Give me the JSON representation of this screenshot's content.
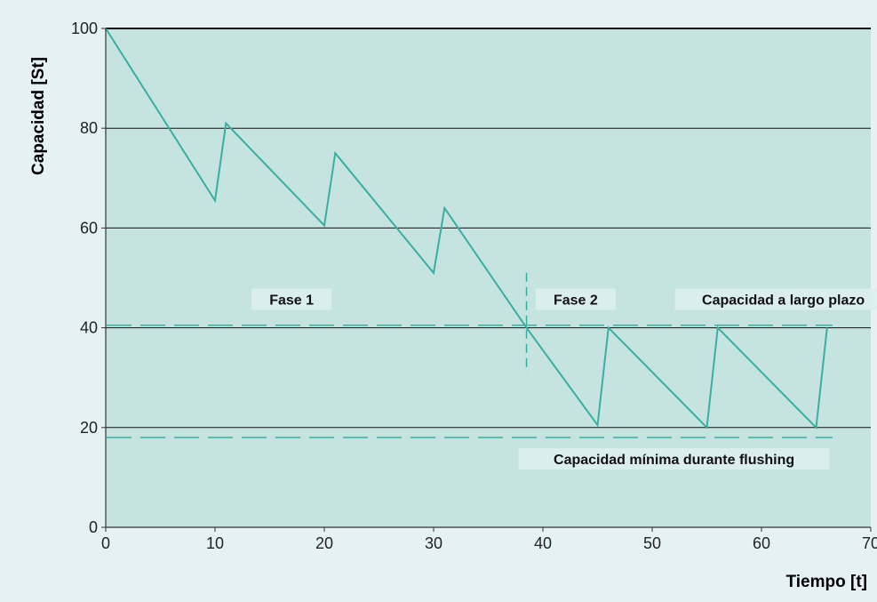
{
  "chart_data": {
    "type": "line",
    "xlabel": "Tiempo [t]",
    "ylabel": "Capacidad [St]",
    "xlim": [
      0,
      70
    ],
    "ylim": [
      0,
      100
    ],
    "xticks": [
      0,
      10,
      20,
      30,
      40,
      50,
      60,
      70
    ],
    "yticks": [
      0,
      20,
      40,
      60,
      80,
      100
    ],
    "grid": "horizontal",
    "series": [
      {
        "color": "#3aaea0",
        "x": [
          0,
          10,
          11,
          20,
          21,
          30,
          31,
          38.5,
          45,
          46,
          55,
          56,
          65,
          66
        ],
        "y": [
          100,
          65.5,
          81,
          60.5,
          75,
          51,
          64,
          40,
          20.5,
          40,
          20,
          40,
          20,
          40
        ]
      }
    ],
    "reference_lines": [
      {
        "orientation": "horizontal",
        "value": 40.5,
        "style": "dashed",
        "color": "#3aaea0",
        "label": "Capacidad a largo plazo"
      },
      {
        "orientation": "horizontal",
        "value": 18,
        "style": "dashed",
        "color": "#3aaea0",
        "label": "Capacidad mínima durante flushing"
      },
      {
        "orientation": "vertical",
        "value": 38.5,
        "range": [
          31,
          51
        ],
        "style": "dashed",
        "color": "#3aaea0"
      }
    ],
    "annotations": [
      {
        "text": "Fase 1",
        "x": 17,
        "y": 45
      },
      {
        "text": "Fase 2",
        "x": 43,
        "y": 45
      },
      {
        "text": "Capacidad a largo plazo",
        "x": 62,
        "y": 45
      },
      {
        "text": "Capacidad mínima durante flushing",
        "x": 52,
        "y": 13
      }
    ],
    "colors": {
      "plot_background": "#c5e4e0",
      "page_background": "#e6f2f2",
      "line": "#3aaea0"
    }
  }
}
